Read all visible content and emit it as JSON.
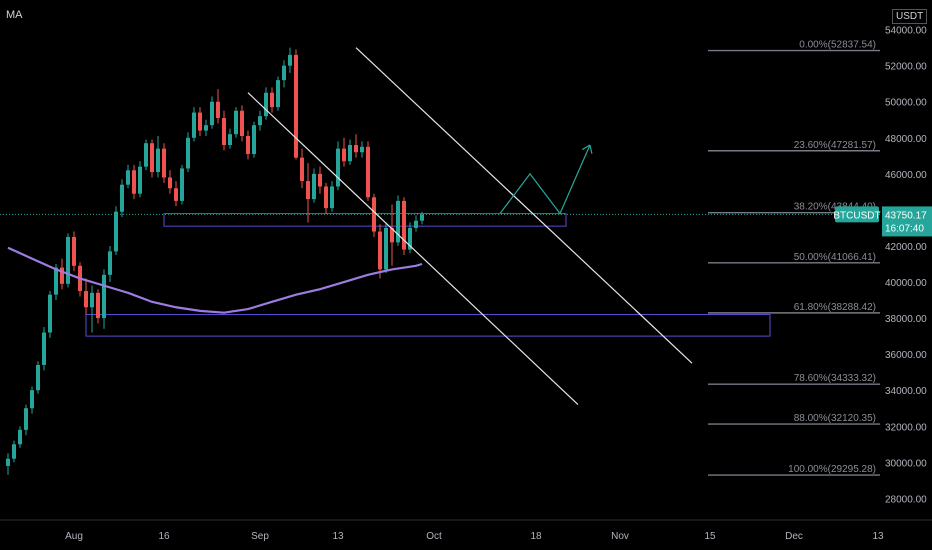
{
  "indicator": "MA",
  "currency": "USDT",
  "price_label": {
    "symbol": "BTCUSDT",
    "price": "43750.17",
    "countdown": "16:07:40",
    "color": "#26a69a"
  },
  "colors": {
    "background": "#000000",
    "up_candle": "#26a69a",
    "down_candle": "#ef5350",
    "moving_average": "#9c7ce0",
    "channel": "#e6e6e6",
    "zone": "#5b4bd6",
    "projection": "#26a69a",
    "current_price_line": "#26a69a",
    "fib_line": "#787b86"
  },
  "chart_data": {
    "type": "candlestick",
    "symbol": "BTCUSDT",
    "x_ticks": [
      "Aug",
      "16",
      "Sep",
      "13",
      "Oct",
      "18",
      "Nov",
      "15",
      "Dec",
      "13"
    ],
    "y_ticks": [
      "54000.00",
      "52000.00",
      "50000.00",
      "48000.00",
      "46000.00",
      "44000.00",
      "42000.00",
      "40000.00",
      "38000.00",
      "36000.00",
      "34000.00",
      "32000.00",
      "30000.00",
      "28000.00"
    ],
    "y_range": [
      26800,
      55200
    ],
    "current_price": 43750.17,
    "candles": [
      [
        29800,
        30500,
        29300,
        30200
      ],
      [
        30200,
        31200,
        30000,
        31000
      ],
      [
        31000,
        32000,
        30800,
        31800
      ],
      [
        31800,
        33200,
        31500,
        33000
      ],
      [
        33000,
        34200,
        32700,
        34000
      ],
      [
        34000,
        35600,
        33800,
        35400
      ],
      [
        35400,
        37500,
        35100,
        37200
      ],
      [
        37200,
        39500,
        36900,
        39300
      ],
      [
        39300,
        41000,
        39000,
        40800
      ],
      [
        40800,
        41300,
        39600,
        39900
      ],
      [
        39900,
        42700,
        39700,
        42500
      ],
      [
        42500,
        42800,
        40600,
        40900
      ],
      [
        40900,
        41100,
        39200,
        39500
      ],
      [
        39500,
        40200,
        38200,
        38600
      ],
      [
        38600,
        39800,
        37200,
        39400
      ],
      [
        39400,
        39600,
        37700,
        38000
      ],
      [
        38000,
        40700,
        37400,
        40400
      ],
      [
        40400,
        42000,
        40000,
        41700
      ],
      [
        41700,
        44200,
        41500,
        43900
      ],
      [
        43900,
        45700,
        43600,
        45400
      ],
      [
        45400,
        46500,
        45200,
        46200
      ],
      [
        46200,
        46500,
        44600,
        44900
      ],
      [
        44900,
        46700,
        44700,
        46400
      ],
      [
        46400,
        47900,
        46200,
        47700
      ],
      [
        47700,
        47900,
        45800,
        46100
      ],
      [
        46100,
        48100,
        45800,
        47400
      ],
      [
        47400,
        47700,
        45500,
        45800
      ],
      [
        45800,
        46200,
        44900,
        45200
      ],
      [
        45200,
        45600,
        44200,
        44500
      ],
      [
        44500,
        46500,
        44300,
        46300
      ],
      [
        46300,
        48300,
        46100,
        48000
      ],
      [
        48000,
        49700,
        47800,
        49400
      ],
      [
        49400,
        49700,
        48100,
        48400
      ],
      [
        48400,
        49000,
        48100,
        48700
      ],
      [
        48700,
        50300,
        48500,
        50000
      ],
      [
        50000,
        50700,
        48800,
        49100
      ],
      [
        49100,
        49500,
        47300,
        47600
      ],
      [
        47600,
        48500,
        47400,
        48200
      ],
      [
        48200,
        49700,
        48000,
        49500
      ],
      [
        49500,
        49800,
        47800,
        48100
      ],
      [
        48100,
        48400,
        46800,
        47100
      ],
      [
        47100,
        48900,
        46900,
        48700
      ],
      [
        48700,
        49500,
        48400,
        49200
      ],
      [
        49200,
        50800,
        49000,
        50500
      ],
      [
        50500,
        50800,
        49400,
        49700
      ],
      [
        49700,
        51400,
        49500,
        51200
      ],
      [
        51200,
        52300,
        50800,
        52000
      ],
      [
        52000,
        53000,
        51600,
        52600
      ],
      [
        52600,
        52900,
        46800,
        46900
      ],
      [
        46900,
        47400,
        45200,
        45600
      ],
      [
        45600,
        46600,
        43300,
        44600
      ],
      [
        44600,
        46300,
        44400,
        46000
      ],
      [
        46000,
        46400,
        44900,
        45300
      ],
      [
        45300,
        45500,
        43800,
        44100
      ],
      [
        44100,
        45600,
        43900,
        45300
      ],
      [
        45300,
        47800,
        45100,
        47400
      ],
      [
        47400,
        48000,
        46400,
        46700
      ],
      [
        46700,
        47900,
        46500,
        47600
      ],
      [
        47600,
        48200,
        46900,
        47200
      ],
      [
        47200,
        47800,
        46900,
        47500
      ],
      [
        47500,
        47800,
        44500,
        44700
      ],
      [
        44700,
        44900,
        42500,
        42800
      ],
      [
        42800,
        43200,
        40200,
        40700
      ],
      [
        40700,
        43300,
        40500,
        43000
      ],
      [
        43000,
        44300,
        40900,
        42200
      ],
      [
        42200,
        44800,
        42000,
        44500
      ],
      [
        44500,
        44700,
        41500,
        41800
      ],
      [
        41800,
        43300,
        41600,
        43000
      ],
      [
        43000,
        43700,
        42800,
        43400
      ],
      [
        43400,
        43900,
        43200,
        43750
      ]
    ],
    "moving_average": [
      [
        0,
        41900
      ],
      [
        4,
        41300
      ],
      [
        8,
        40700
      ],
      [
        12,
        40200
      ],
      [
        16,
        39800
      ],
      [
        20,
        39400
      ],
      [
        24,
        38900
      ],
      [
        28,
        38600
      ],
      [
        32,
        38400
      ],
      [
        36,
        38300
      ],
      [
        40,
        38500
      ],
      [
        44,
        38900
      ],
      [
        48,
        39300
      ],
      [
        52,
        39600
      ],
      [
        56,
        40000
      ],
      [
        60,
        40400
      ],
      [
        64,
        40700
      ],
      [
        68,
        40900
      ],
      [
        69,
        41000
      ]
    ],
    "fibonacci": [
      {
        "label": "0.00%(52837.54)",
        "value": 52837.54
      },
      {
        "label": "23.60%(47281.57)",
        "value": 47281.57
      },
      {
        "label": "38.20%(43844.40)",
        "value": 43844.4
      },
      {
        "label": "50.00%(41066.41)",
        "value": 41066.41
      },
      {
        "label": "61.80%(38288.42)",
        "value": 38288.42
      },
      {
        "label": "78.60%(34333.32)",
        "value": 34333.32
      },
      {
        "label": "88.00%(32120.35)",
        "value": 32120.35
      },
      {
        "label": "100.00%(29295.28)",
        "value": 29295.28
      }
    ],
    "zones": [
      {
        "x_from": 26,
        "x_to": 93,
        "low": 43100,
        "high": 43800
      },
      {
        "x_from": 13,
        "x_to": 127,
        "low": 37000,
        "high": 38200
      }
    ],
    "channel_lines": [
      {
        "from": [
          40,
          50500
        ],
        "to": [
          95,
          33200
        ]
      },
      {
        "from": [
          58,
          53000
        ],
        "to": [
          114,
          35500
        ]
      }
    ],
    "projection_path": [
      [
        82,
        43800
      ],
      [
        87,
        46000
      ],
      [
        92,
        43800
      ],
      [
        97,
        47600
      ]
    ],
    "arrow_tip": [
      97,
      47600
    ]
  }
}
